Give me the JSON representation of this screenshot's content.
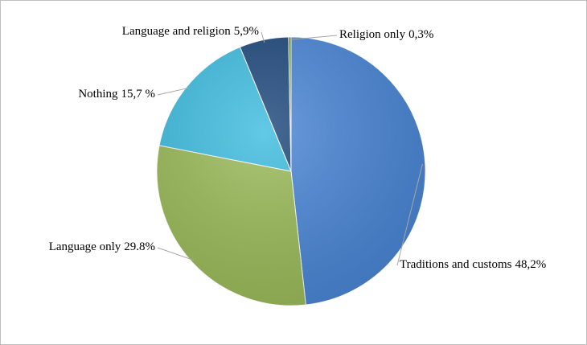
{
  "chart_data": {
    "type": "pie",
    "categories": [
      "Traditions and customs",
      "Language only",
      "Nothing",
      "Language and religion",
      "Religion only"
    ],
    "values": [
      48.2,
      29.8,
      15.7,
      5.9,
      0.3
    ],
    "value_labels": [
      "48,2%",
      "29.8%",
      "15,7 %",
      "5,9%",
      "0,3%"
    ],
    "colors": [
      "#4a86d6",
      "#9bbb59",
      "#3fbde0",
      "#1f497d",
      "#6b8f2b"
    ]
  }
}
